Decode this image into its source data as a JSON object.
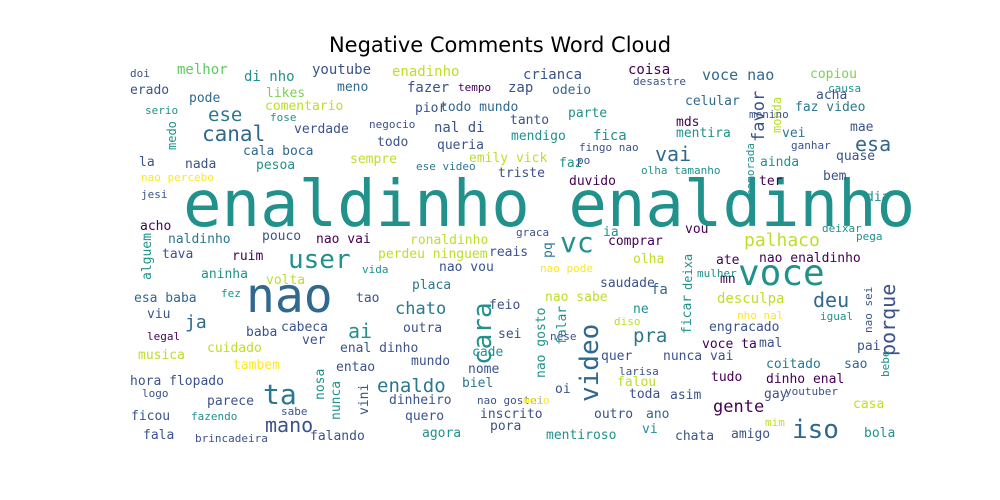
{
  "chart_data": {
    "type": "wordcloud",
    "title": "Negative Comments Word Cloud",
    "words": [
      {
        "text": "enaldinho enaldinho",
        "color": "#21918c"
      },
      {
        "text": "nao",
        "color": "#31688e"
      },
      {
        "text": "voce",
        "color": "#21918c"
      },
      {
        "text": "user",
        "color": "#21918c"
      },
      {
        "text": "vc",
        "color": "#21918c"
      },
      {
        "text": "video",
        "color": "#31688e"
      },
      {
        "text": "cara",
        "color": "#21918c"
      },
      {
        "text": "ta",
        "color": "#2a788e"
      },
      {
        "text": "iso",
        "color": "#31688e"
      },
      {
        "text": "mano",
        "color": "#3b528b"
      },
      {
        "text": "canal",
        "color": "#31688e"
      },
      {
        "text": "ese",
        "color": "#2a788e"
      },
      {
        "text": "vai",
        "color": "#31688e"
      },
      {
        "text": "esa",
        "color": "#31688e"
      },
      {
        "text": "palhaco",
        "color": "#bddf26"
      },
      {
        "text": "deu",
        "color": "#31688e"
      },
      {
        "text": "porque",
        "color": "#3b528b"
      },
      {
        "text": "pra",
        "color": "#2a788e"
      },
      {
        "text": "enaldo",
        "color": "#2a788e"
      },
      {
        "text": "ai",
        "color": "#21918c"
      },
      {
        "text": "ja",
        "color": "#31688e"
      },
      {
        "text": "chato",
        "color": "#2a788e"
      },
      {
        "text": "gente",
        "color": "#440154"
      },
      {
        "text": "favor",
        "color": "#3b528b"
      },
      {
        "text": "melhor",
        "color": "#5ec962"
      },
      {
        "text": "di nho",
        "color": "#21918c"
      },
      {
        "text": "youtube",
        "color": "#3b528b"
      },
      {
        "text": "enadinho",
        "color": "#bddf26"
      },
      {
        "text": "crianca",
        "color": "#3b528b"
      },
      {
        "text": "coisa",
        "color": "#440154"
      },
      {
        "text": "voce nao",
        "color": "#31688e"
      },
      {
        "text": "copiou",
        "color": "#7ad151"
      },
      {
        "text": "doi",
        "color": "#3b528b"
      },
      {
        "text": "tempo",
        "color": "#440154"
      },
      {
        "text": "zap",
        "color": "#3b528b"
      },
      {
        "text": "odeio",
        "color": "#31688e"
      },
      {
        "text": "desastre",
        "color": "#3b528b"
      },
      {
        "text": "causa",
        "color": "#21918c"
      },
      {
        "text": "erado",
        "color": "#3b528b"
      },
      {
        "text": "likes",
        "color": "#7ad151"
      },
      {
        "text": "meno",
        "color": "#31688e"
      },
      {
        "text": "fazer",
        "color": "#3b528b"
      },
      {
        "text": "acha",
        "color": "#3b528b"
      },
      {
        "text": "pode",
        "color": "#31688e"
      },
      {
        "text": "comentario",
        "color": "#bddf26"
      },
      {
        "text": "pior",
        "color": "#3b528b"
      },
      {
        "text": "todo mundo",
        "color": "#31688e"
      },
      {
        "text": "parte",
        "color": "#21918c"
      },
      {
        "text": "celular",
        "color": "#31688e"
      },
      {
        "text": "moeda",
        "color": "#bddf26"
      },
      {
        "text": "faz video",
        "color": "#2a788e"
      },
      {
        "text": "serio",
        "color": "#21918c"
      },
      {
        "text": "fose",
        "color": "#21918c"
      },
      {
        "text": "tanto",
        "color": "#3b528b"
      },
      {
        "text": "mds",
        "color": "#440154"
      },
      {
        "text": "menino",
        "color": "#3b528b"
      },
      {
        "text": "mae",
        "color": "#3b528b"
      },
      {
        "text": "medo",
        "color": "#21918c"
      },
      {
        "text": "verdade",
        "color": "#3b528b"
      },
      {
        "text": "negocio",
        "color": "#3b528b"
      },
      {
        "text": "nal di",
        "color": "#3b528b"
      },
      {
        "text": "mendigo",
        "color": "#21918c"
      },
      {
        "text": "fica",
        "color": "#21918c"
      },
      {
        "text": "mentira",
        "color": "#21918c"
      },
      {
        "text": "vei",
        "color": "#2a788e"
      },
      {
        "text": "todo",
        "color": "#3b528b"
      },
      {
        "text": "queria",
        "color": "#3b528b"
      },
      {
        "text": "fingo nao",
        "color": "#3b528b"
      },
      {
        "text": "cala boca",
        "color": "#31688e"
      },
      {
        "text": "ganhar",
        "color": "#3b528b"
      },
      {
        "text": "quase",
        "color": "#3b528b"
      },
      {
        "text": "la",
        "color": "#3b528b"
      },
      {
        "text": "nada",
        "color": "#3b528b"
      },
      {
        "text": "pesoa",
        "color": "#21918c"
      },
      {
        "text": "sempre",
        "color": "#bddf26"
      },
      {
        "text": "emily vick",
        "color": "#bddf26"
      },
      {
        "text": "ese video",
        "color": "#2a788e"
      },
      {
        "text": "faz",
        "color": "#21918c"
      },
      {
        "text": "po",
        "color": "#3b528b"
      },
      {
        "text": "olha tamanho",
        "color": "#21918c"
      },
      {
        "text": "namorada",
        "color": "#21918c"
      },
      {
        "text": "ainda",
        "color": "#21918c"
      },
      {
        "text": "nao percebo",
        "color": "#fde725"
      },
      {
        "text": "triste",
        "color": "#3b528b"
      },
      {
        "text": "duvido",
        "color": "#440154"
      },
      {
        "text": "ter",
        "color": "#440154"
      },
      {
        "text": "bem",
        "color": "#3b528b"
      },
      {
        "text": "jesi",
        "color": "#3b528b"
      },
      {
        "text": "dia",
        "color": "#21918c"
      },
      {
        "text": "acho",
        "color": "#440154"
      },
      {
        "text": "graca",
        "color": "#3b528b"
      },
      {
        "text": "ia",
        "color": "#21918c"
      },
      {
        "text": "vou",
        "color": "#440154"
      },
      {
        "text": "deixar",
        "color": "#21918c"
      },
      {
        "text": "alguem",
        "color": "#21918c"
      },
      {
        "text": "naldinho",
        "color": "#2a788e"
      },
      {
        "text": "pouco",
        "color": "#3b528b"
      },
      {
        "text": "nao vai",
        "color": "#440154"
      },
      {
        "text": "ronaldinho",
        "color": "#bddf26"
      },
      {
        "text": "pq",
        "color": "#2a788e"
      },
      {
        "text": "comprar",
        "color": "#440154"
      },
      {
        "text": "pega",
        "color": "#21918c"
      },
      {
        "text": "tava",
        "color": "#3b528b"
      },
      {
        "text": "ruim",
        "color": "#440154"
      },
      {
        "text": "perdeu ninguem",
        "color": "#bddf26"
      },
      {
        "text": "reais",
        "color": "#3b528b"
      },
      {
        "text": "olha",
        "color": "#bddf26"
      },
      {
        "text": "ate",
        "color": "#440154"
      },
      {
        "text": "nao enaldinho",
        "color": "#440154"
      },
      {
        "text": "aninha",
        "color": "#21918c"
      },
      {
        "text": "volta",
        "color": "#bddf26"
      },
      {
        "text": "vida",
        "color": "#21918c"
      },
      {
        "text": "nao vou",
        "color": "#3b528b"
      },
      {
        "text": "nao pode",
        "color": "#fde725"
      },
      {
        "text": "deixa",
        "color": "#21918c"
      },
      {
        "text": "mn",
        "color": "#440154"
      },
      {
        "text": "mulher",
        "color": "#21918c"
      },
      {
        "text": "fez",
        "color": "#21918c"
      },
      {
        "text": "tao",
        "color": "#3b528b"
      },
      {
        "text": "placa",
        "color": "#2a788e"
      },
      {
        "text": "saudade",
        "color": "#3b528b"
      },
      {
        "text": "fa",
        "color": "#31688e"
      },
      {
        "text": "desculpa",
        "color": "#bddf26"
      },
      {
        "text": "esa baba",
        "color": "#31688e"
      },
      {
        "text": "nao sabe",
        "color": "#bddf26"
      },
      {
        "text": "ficar",
        "color": "#21918c"
      },
      {
        "text": "viu",
        "color": "#3b528b"
      },
      {
        "text": "feio",
        "color": "#3b528b"
      },
      {
        "text": "ne",
        "color": "#21918c"
      },
      {
        "text": "nho nal",
        "color": "#fde725"
      },
      {
        "text": "igual",
        "color": "#21918c"
      },
      {
        "text": "legal",
        "color": "#440154"
      },
      {
        "text": "baba",
        "color": "#3b528b"
      },
      {
        "text": "cabeca",
        "color": "#3b528b"
      },
      {
        "text": "outra",
        "color": "#3b528b"
      },
      {
        "text": "sei",
        "color": "#3b528b"
      },
      {
        "text": "diso",
        "color": "#bddf26"
      },
      {
        "text": "engracado",
        "color": "#3b528b"
      },
      {
        "text": "nao sei",
        "color": "#3b528b"
      },
      {
        "text": "cuidado",
        "color": "#bddf26"
      },
      {
        "text": "ver",
        "color": "#3b528b"
      },
      {
        "text": "enal dinho",
        "color": "#3b528b"
      },
      {
        "text": "nao gosto",
        "color": "#21918c"
      },
      {
        "text": "falar",
        "color": "#21918c"
      },
      {
        "text": "nese",
        "color": "#3b528b"
      },
      {
        "text": "voce ta",
        "color": "#440154"
      },
      {
        "text": "mal",
        "color": "#3b528b"
      },
      {
        "text": "pai",
        "color": "#3b528b"
      },
      {
        "text": "musica",
        "color": "#bddf26"
      },
      {
        "text": "tambem",
        "color": "#fde725"
      },
      {
        "text": "mundo",
        "color": "#3b528b"
      },
      {
        "text": "cade",
        "color": "#21918c"
      },
      {
        "text": "quer",
        "color": "#3b528b"
      },
      {
        "text": "nunca vai",
        "color": "#3b528b"
      },
      {
        "text": "coitado",
        "color": "#2a788e"
      },
      {
        "text": "sao",
        "color": "#31688e"
      },
      {
        "text": "entao",
        "color": "#3b528b"
      },
      {
        "text": "nome",
        "color": "#3b528b"
      },
      {
        "text": "larisa",
        "color": "#3b528b"
      },
      {
        "text": "bebe",
        "color": "#21918c"
      },
      {
        "text": "hora flopado",
        "color": "#3b528b"
      },
      {
        "text": "biel",
        "color": "#2a788e"
      },
      {
        "text": "falou",
        "color": "#bddf26"
      },
      {
        "text": "tudo",
        "color": "#440154"
      },
      {
        "text": "dinho enal",
        "color": "#440154"
      },
      {
        "text": "logo",
        "color": "#3b528b"
      },
      {
        "text": "nosa",
        "color": "#21918c"
      },
      {
        "text": "oi",
        "color": "#3b528b"
      },
      {
        "text": "toda",
        "color": "#3b528b"
      },
      {
        "text": "asim",
        "color": "#3b528b"
      },
      {
        "text": "gay",
        "color": "#3b528b"
      },
      {
        "text": "youtuber",
        "color": "#3b528b"
      },
      {
        "text": "parece",
        "color": "#3b528b"
      },
      {
        "text": "nunca",
        "color": "#21918c"
      },
      {
        "text": "vini",
        "color": "#3b528b"
      },
      {
        "text": "dinheiro",
        "color": "#3b528b"
      },
      {
        "text": "nao gostei",
        "color": "#3b528b"
      },
      {
        "text": "meio",
        "color": "#fde725"
      },
      {
        "text": "casa",
        "color": "#bddf26"
      },
      {
        "text": "ficou",
        "color": "#3b528b"
      },
      {
        "text": "fazendo",
        "color": "#21918c"
      },
      {
        "text": "sabe",
        "color": "#3b528b"
      },
      {
        "text": "quero",
        "color": "#3b528b"
      },
      {
        "text": "inscrito",
        "color": "#3b528b"
      },
      {
        "text": "outro",
        "color": "#3b528b"
      },
      {
        "text": "ano",
        "color": "#31688e"
      },
      {
        "text": "mim",
        "color": "#bddf26"
      },
      {
        "text": "fala",
        "color": "#3b528b"
      },
      {
        "text": "brincadeira",
        "color": "#3b528b"
      },
      {
        "text": "falando",
        "color": "#3b528b"
      },
      {
        "text": "agora",
        "color": "#21918c"
      },
      {
        "text": "pora",
        "color": "#3b528b"
      },
      {
        "text": "mentiroso",
        "color": "#21918c"
      },
      {
        "text": "vi",
        "color": "#21918c"
      },
      {
        "text": "chata",
        "color": "#3b528b"
      },
      {
        "text": "amigo",
        "color": "#3b528b"
      },
      {
        "text": "bola",
        "color": "#21918c"
      }
    ]
  }
}
